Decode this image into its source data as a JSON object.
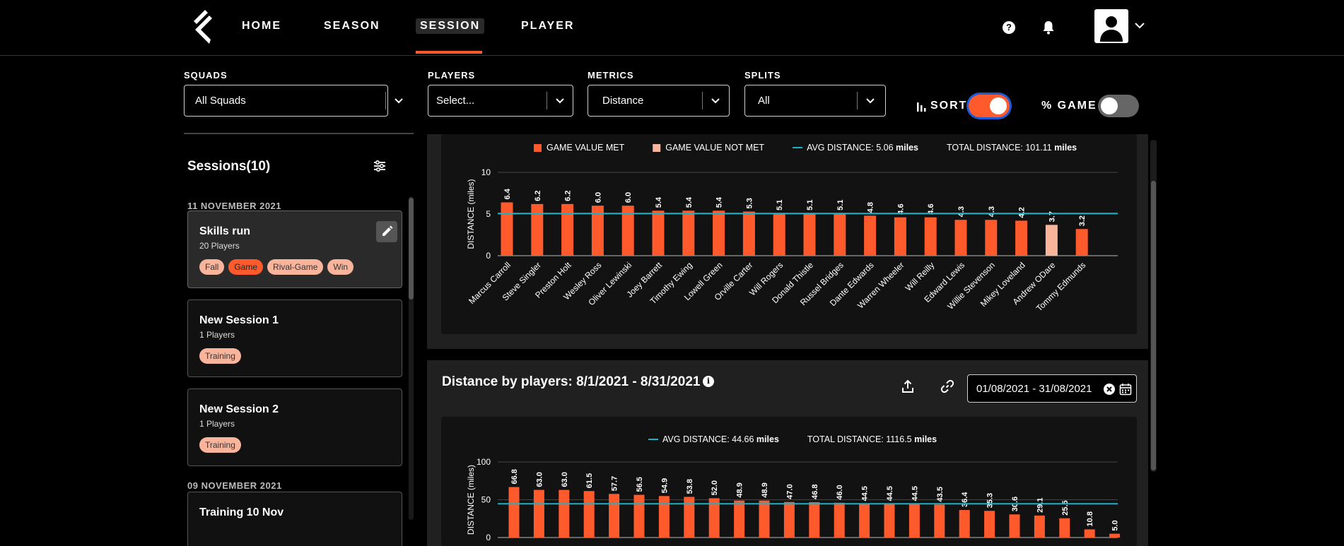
{
  "nav": {
    "items": [
      {
        "label": "HOME",
        "active": false
      },
      {
        "label": "SEASON",
        "active": false
      },
      {
        "label": "SESSION",
        "active": true
      },
      {
        "label": "PLAYER",
        "active": false
      }
    ],
    "icons": {
      "help": "help-icon",
      "notifications": "bell-icon",
      "avatar": "user-avatar",
      "menu": "chevron-down-icon"
    },
    "accent_color": "#ff5a2c"
  },
  "filters": {
    "squads": {
      "label": "SQUADS",
      "value": "All Squads"
    },
    "players": {
      "label": "PLAYERS",
      "value": "Select..."
    },
    "metrics": {
      "label": "METRICS",
      "value": "Distance"
    },
    "splits": {
      "label": "SPLITS",
      "value": "All"
    },
    "sort": {
      "label": "SORT",
      "on": true
    },
    "percent_game": {
      "label": "% GAME",
      "on": false
    }
  },
  "sidebar": {
    "title": "Sessions(10)",
    "groups": [
      {
        "date": "11 NOVEMBER 2021",
        "sessions": [
          {
            "title": "Skills run",
            "players": "20 Players",
            "tags": [
              "Fall",
              "Game",
              "Rival-Game",
              "Win"
            ],
            "selected": true
          },
          {
            "title": "New Session 1",
            "players": "1 Players",
            "tags": [
              "Training"
            ],
            "selected": false
          },
          {
            "title": "New Session 2",
            "players": "1 Players",
            "tags": [
              "Training"
            ],
            "selected": false
          }
        ]
      },
      {
        "date": "09 NOVEMBER 2021",
        "sessions": [
          {
            "title": "Training 10 Nov",
            "players": "",
            "tags": [],
            "selected": false
          }
        ]
      }
    ]
  },
  "panel_bottom": {
    "title": "Distance by players: 8/1/2021 - 8/31/2021",
    "date_range": "01/08/2021 - 31/08/2021"
  },
  "chart_data": [
    {
      "type": "bar",
      "legend": [
        {
          "label": "GAME VALUE MET",
          "color": "#ff5a2c"
        },
        {
          "label": "GAME VALUE NOT MET",
          "color": "#f9b49c"
        },
        {
          "label": "AVG DISTANCE: 5.06",
          "unit": "miles",
          "color": "#19b3c8"
        },
        {
          "label": "TOTAL DISTANCE: 101.11",
          "unit": "miles"
        }
      ],
      "ylabel": "DISTANCE (miles)",
      "yticks": [
        0,
        5,
        10
      ],
      "ylim": [
        0,
        10
      ],
      "average": 5.06,
      "categories": [
        "Marcus Carroll",
        "Steve Singler",
        "Preston Holt",
        "Wesley Ross",
        "Oliver Lewinski",
        "Joey Barrett",
        "Timothy Ewing",
        "Lowell Green",
        "Orville Carter",
        "Will Rogers",
        "Donald Thistle",
        "Russel Bridges",
        "Dante Edwards",
        "Warren Wheeler",
        "Will Reilly",
        "Edward Lewis",
        "Willie Stevenson",
        "Mikey Loveland",
        "Andrew ODare",
        "Tommy Edmunds"
      ],
      "values": [
        6.4,
        6.2,
        6.2,
        6.0,
        6.0,
        5.4,
        5.4,
        5.4,
        5.3,
        5.1,
        5.1,
        5.1,
        4.8,
        4.6,
        4.6,
        4.3,
        4.3,
        4.2,
        3.7,
        3.2
      ],
      "value_labels": [
        "6.4",
        "6.2",
        "6.2",
        "6.0",
        "6.0",
        "5.4",
        "5.4",
        "5.4",
        "5.3",
        "5.1",
        "5.1",
        "5.1",
        "4.8",
        "4.6",
        "4.6",
        "4.3",
        "4.3",
        "4.2",
        "3.7",
        "3.2"
      ],
      "met": [
        true,
        true,
        true,
        true,
        true,
        true,
        true,
        true,
        true,
        true,
        true,
        true,
        true,
        true,
        true,
        true,
        true,
        true,
        false,
        true
      ]
    },
    {
      "type": "bar",
      "legend": [
        {
          "label": "AVG DISTANCE: 44.66",
          "unit": "miles",
          "color": "#19b3c8"
        },
        {
          "label": "TOTAL DISTANCE: 1116.5",
          "unit": "miles"
        }
      ],
      "ylabel": "DISTANCE (miles)",
      "yticks": [
        0,
        50,
        100
      ],
      "ylim": [
        0,
        100
      ],
      "average": 44.66,
      "values": [
        66.8,
        63.0,
        63.0,
        61.5,
        57.7,
        56.5,
        54.9,
        53.8,
        52.0,
        48.9,
        48.9,
        47.0,
        46.8,
        46.0,
        44.5,
        44.5,
        44.5,
        43.5,
        36.4,
        35.3,
        30.6,
        29.1,
        25.5,
        10.8,
        5.0
      ],
      "value_labels": [
        "66.8",
        "63.0",
        "63.0",
        "61.5",
        "57.7",
        "56.5",
        "54.9",
        "53.8",
        "52.0",
        "48.9",
        "48.9",
        "47.0",
        "46.8",
        "46.0",
        "44.5",
        "44.5",
        "44.5",
        "43.5",
        "36.4",
        "35.3",
        "30.6",
        "29.1",
        "25.5",
        "10.8",
        "5.0"
      ]
    }
  ]
}
